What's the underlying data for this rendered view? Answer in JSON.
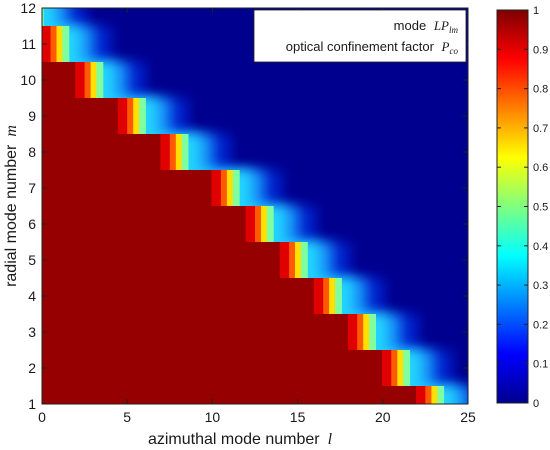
{
  "chart_data": {
    "type": "heatmap",
    "xlabel": "azimuthal mode number",
    "xlabel_symbol": "l",
    "ylabel": "radial mode number",
    "ylabel_symbol": "m",
    "xlim": [
      0,
      25
    ],
    "ylim": [
      1,
      12
    ],
    "x_ticks": [
      0,
      5,
      10,
      15,
      20,
      25
    ],
    "y_ticks": [
      1,
      2,
      3,
      4,
      5,
      6,
      7,
      8,
      9,
      10,
      11,
      12
    ],
    "annotation": {
      "line1_prefix": "mode",
      "line1_math": "LP",
      "line1_sub": "lm",
      "line2_prefix": "optical confinement factor",
      "line2_math": "P",
      "line2_sub": "co"
    },
    "colorbar": {
      "colormap": "jet",
      "range": [
        0,
        1
      ],
      "ticks": [
        "0",
        "0.1",
        "0.2",
        "0.3",
        "0.4",
        "0.5",
        "0.6",
        "0.7",
        "0.8",
        "0.9",
        "1"
      ]
    },
    "confinement_cutoff_l_by_m": {
      "m": [
        1,
        2,
        3,
        4,
        5,
        6,
        7,
        8,
        9,
        10,
        11,
        12
      ],
      "l_cutoff": [
        22.5,
        20.5,
        18.5,
        16.5,
        14.5,
        12.5,
        10.5,
        7.5,
        5,
        2.5,
        0.5,
        -1
      ]
    },
    "value_inside": 1,
    "value_outside": 0
  }
}
